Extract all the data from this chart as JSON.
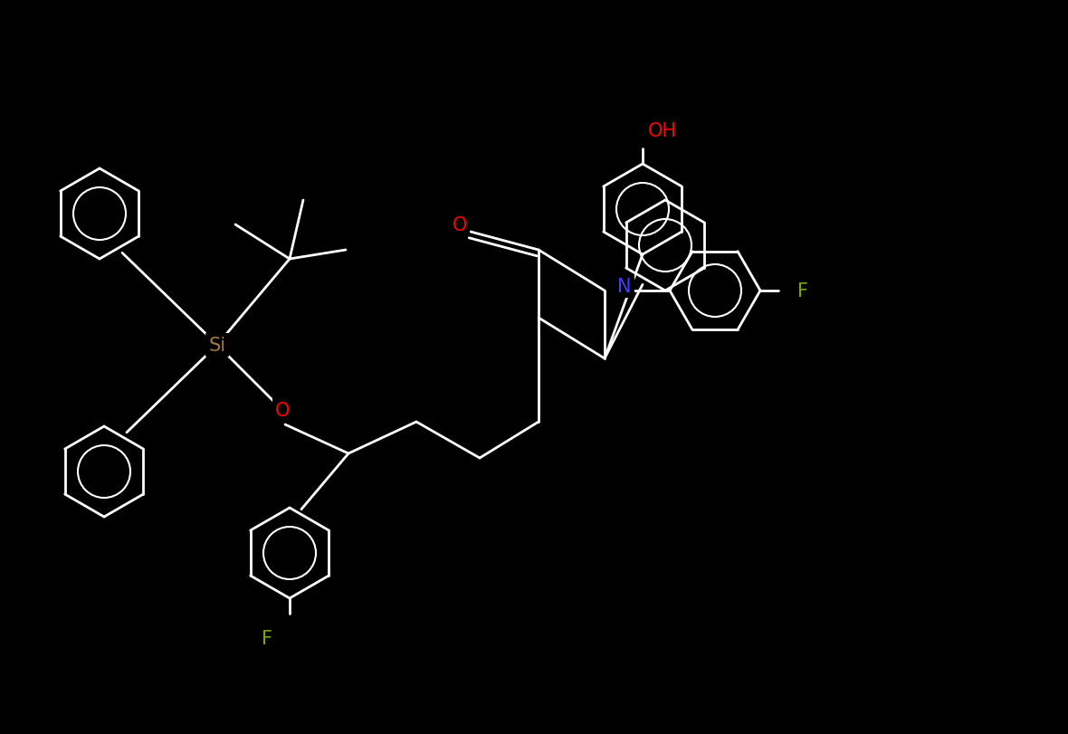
{
  "bg": "#000000",
  "bond_color": "#ffffff",
  "colors": {
    "N": "#4040ff",
    "O": "#ff0000",
    "F": "#7aaa00",
    "Si": "#a07840",
    "C": "#ffffff",
    "OH": "#ff0000"
  },
  "lw": 2.0,
  "font_size": 16
}
